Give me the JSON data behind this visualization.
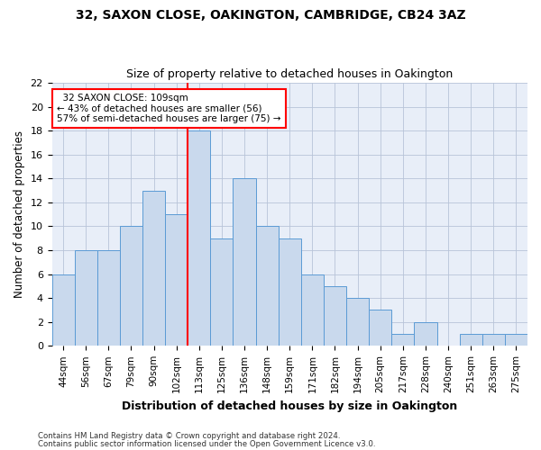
{
  "title1": "32, SAXON CLOSE, OAKINGTON, CAMBRIDGE, CB24 3AZ",
  "title2": "Size of property relative to detached houses in Oakington",
  "xlabel": "Distribution of detached houses by size in Oakington",
  "ylabel": "Number of detached properties",
  "categories": [
    "44sqm",
    "56sqm",
    "67sqm",
    "79sqm",
    "90sqm",
    "102sqm",
    "113sqm",
    "125sqm",
    "136sqm",
    "148sqm",
    "159sqm",
    "171sqm",
    "182sqm",
    "194sqm",
    "205sqm",
    "217sqm",
    "228sqm",
    "240sqm",
    "251sqm",
    "263sqm",
    "275sqm"
  ],
  "values": [
    6,
    8,
    8,
    10,
    13,
    11,
    18,
    9,
    14,
    10,
    9,
    6,
    5,
    4,
    3,
    1,
    2,
    0,
    1,
    1,
    1
  ],
  "bar_color": "#c9d9ed",
  "bar_edge_color": "#5b9bd5",
  "ref_line_color": "red",
  "annotation_line1": "  32 SAXON CLOSE: 109sqm  ",
  "annotation_line2": "← 43% of detached houses are smaller (56)",
  "annotation_line3": "57% of semi-detached houses are larger (75) →",
  "ylim": [
    0,
    22
  ],
  "yticks": [
    0,
    2,
    4,
    6,
    8,
    10,
    12,
    14,
    16,
    18,
    20,
    22
  ],
  "footer1": "Contains HM Land Registry data © Crown copyright and database right 2024.",
  "footer2": "Contains public sector information licensed under the Open Government Licence v3.0.",
  "bg_color": "#e8eef8",
  "grid_color": "#b8c4d8",
  "fig_width": 6.0,
  "fig_height": 5.0,
  "dpi": 100
}
